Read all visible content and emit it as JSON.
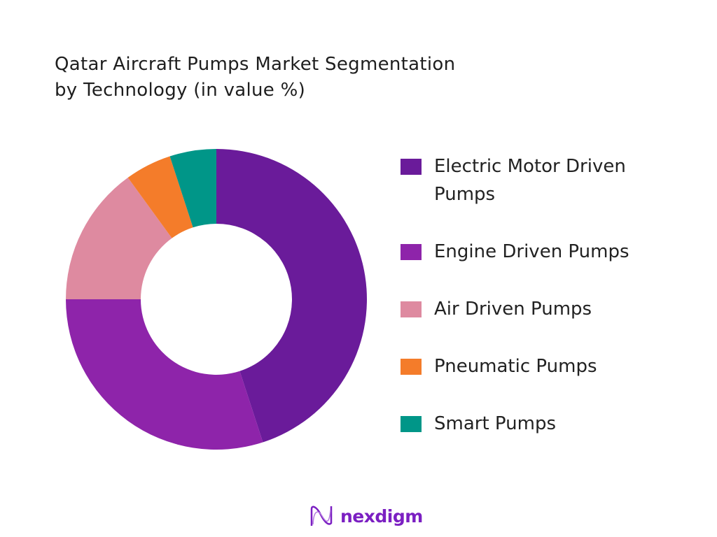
{
  "chart_data": {
    "type": "pie",
    "donut": true,
    "title": "Qatar Aircraft Pumps Market Segmentation by Technology (in value %)",
    "title_lines": [
      "Qatar Aircraft Pumps Market Segmentation",
      "by Technology (in value %)"
    ],
    "categories": [
      "Electric Motor Driven Pumps",
      "Engine Driven Pumps",
      "Air Driven Pumps",
      "Pneumatic Pumps",
      "Smart Pumps"
    ],
    "values": [
      45,
      30,
      15,
      5,
      5
    ],
    "colors": [
      "#6a1b9a",
      "#8e24aa",
      "#de8aa0",
      "#f47c2a",
      "#009688"
    ],
    "legend_position": "right"
  },
  "legend": {
    "items": [
      {
        "label": "Electric Motor Driven Pumps",
        "line1": "Electric Motor Driven",
        "line2": "Pumps"
      },
      {
        "label": "Engine Driven Pumps"
      },
      {
        "label": "Air Driven Pumps"
      },
      {
        "label": "Pneumatic Pumps"
      },
      {
        "label": "Smart Pumps"
      }
    ]
  },
  "logo": {
    "text": "nexdigm"
  }
}
